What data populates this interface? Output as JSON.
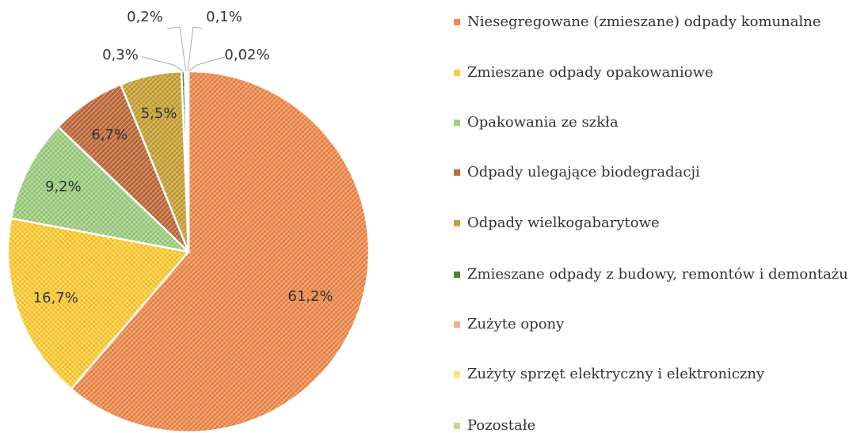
{
  "chart_data": {
    "type": "pie",
    "categories": [
      "Niesegregowane (zmieszane) odpady komunalne",
      "Zmieszane odpady opakowaniowe",
      "Opakowania ze szkła",
      "Odpady ulegające biodegradacji",
      "Odpady wielkogabarytowe",
      "Zmieszane odpady z budowy, remontów i demontażu",
      "Zużyte opony",
      "Zużyty sprzęt elektryczny i elektroniczny",
      "Pozostałe"
    ],
    "values": [
      61.2,
      16.7,
      9.2,
      6.7,
      5.5,
      0.3,
      0.2,
      0.1,
      0.02
    ],
    "value_labels": [
      "61,2%",
      "16,7%",
      "9,2%",
      "6,7%",
      "5,5%",
      "0,3%",
      "0,2%",
      "0,1%",
      "0,02%"
    ],
    "colors": [
      "#f08a4b",
      "#ffcc33",
      "#9fcf7f",
      "#c0693a",
      "#c9a233",
      "#4f7f32",
      "#f4ad7e",
      "#ffe07a",
      "#b5dc9c"
    ],
    "legend": "right"
  }
}
